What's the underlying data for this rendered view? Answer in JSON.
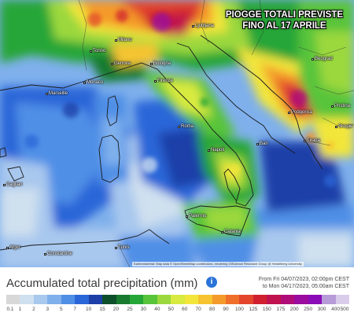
{
  "headline": {
    "line1": "PIOGGE TOTALI PREVISTE",
    "line2": "FINO AL 17 APRILE"
  },
  "map": {
    "cities": [
      {
        "name": "Ljubljana"
      },
      {
        "name": "Torino"
      },
      {
        "name": "Milano"
      },
      {
        "name": "Genova"
      },
      {
        "name": "Bologna"
      },
      {
        "name": "Firenze"
      },
      {
        "name": "Monaco"
      },
      {
        "name": "Marseille"
      },
      {
        "name": "Roma"
      },
      {
        "name": "Napoli"
      },
      {
        "name": "Bari"
      },
      {
        "name": "Podgorica"
      },
      {
        "name": "Tirana"
      },
      {
        "name": "Pristina"
      },
      {
        "name": "Skopje"
      },
      {
        "name": "Beograd"
      },
      {
        "name": "Palermo"
      },
      {
        "name": "Catania"
      },
      {
        "name": "Cagliari"
      },
      {
        "name": "Alger"
      },
      {
        "name": "Constantine"
      },
      {
        "name": "Tunis"
      }
    ],
    "attribution": "Kartenmaterial: Map data © OpenStreetMap contributors, rendering GIScience Research Group @ Heidelberg University"
  },
  "legend": {
    "title": "Accumulated total precipitation (mm)",
    "info_icon": "info-icon",
    "valid_from": "From Fri 04/07/2023, 02:00pm CEST",
    "valid_to": "to Mon 04/17/2023, 05:00am CEST",
    "colors": [
      "#d8d8d8",
      "#cfe0ef",
      "#a9c8ee",
      "#7fb0ec",
      "#4f8fe6",
      "#2a66d8",
      "#1c3fa8",
      "#0d4f2b",
      "#177a2f",
      "#25a637",
      "#58c43a",
      "#9bd83e",
      "#d8ea3f",
      "#f2e63a",
      "#f5c430",
      "#f49a2b",
      "#ef6f2a",
      "#e3462c",
      "#d0202f",
      "#c0124f",
      "#b00c78",
      "#9a0b9e",
      "#8c0bb8",
      "#b79ad8",
      "#d9cceb"
    ],
    "labels": [
      "0.1",
      "1",
      "2",
      "3",
      "5",
      "7",
      "10",
      "15",
      "20",
      "25",
      "30",
      "40",
      "50",
      "60",
      "70",
      "80",
      "90",
      "100",
      "125",
      "150",
      "175",
      "200",
      "250",
      "300",
      "400",
      "500"
    ]
  }
}
